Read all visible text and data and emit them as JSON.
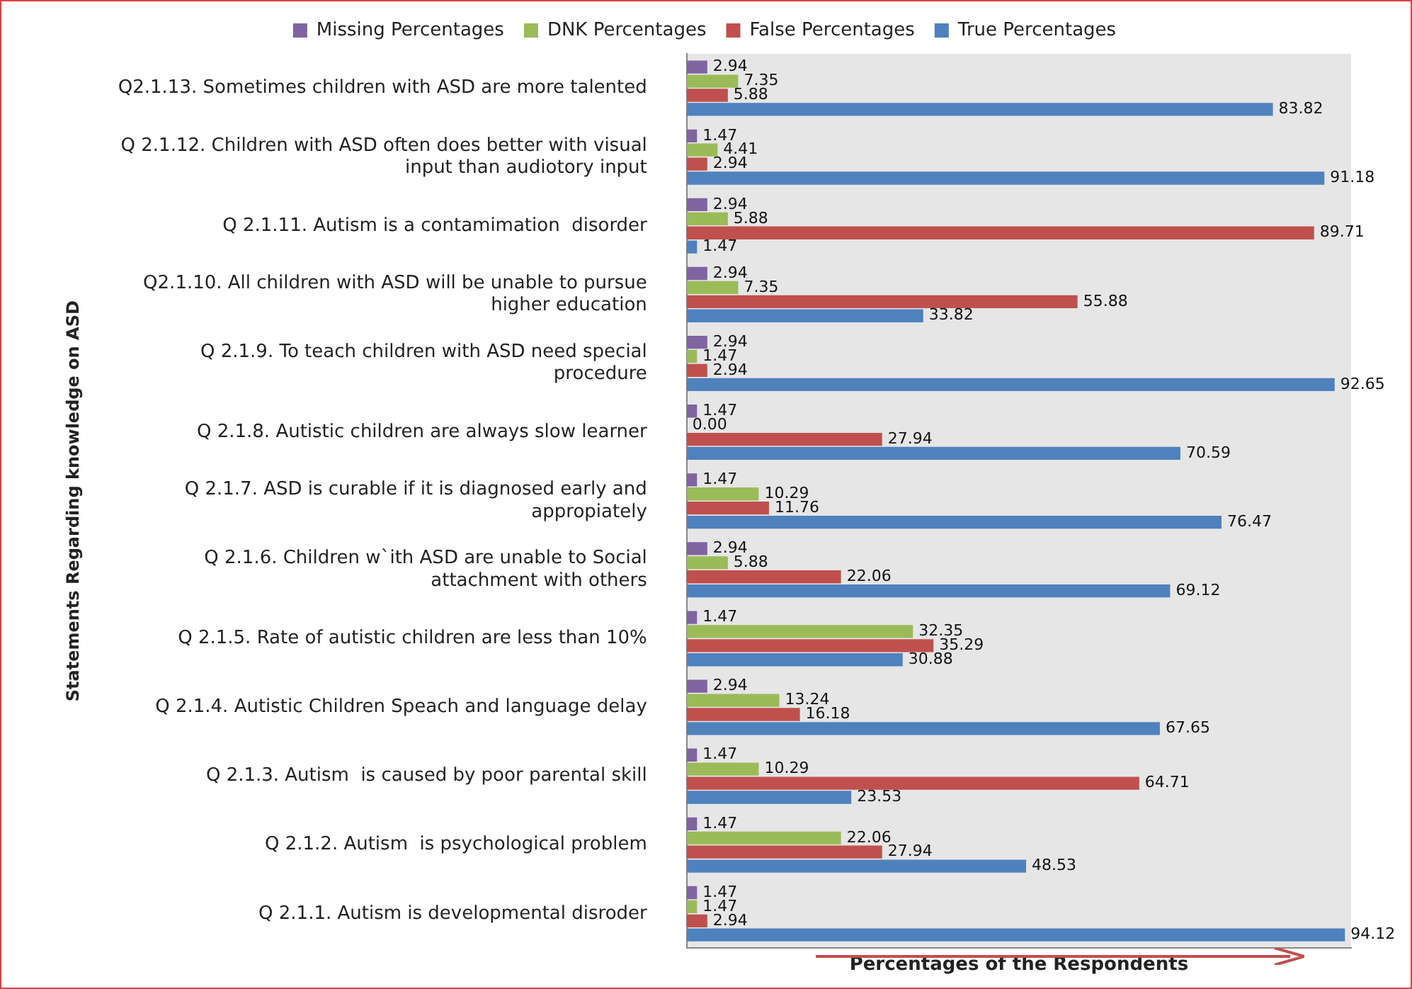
{
  "chart_data": {
    "type": "bar",
    "orientation": "horizontal",
    "xlabel": "Percentages of the Respondents",
    "ylabel": "Statements Regarding knowledge on ASD",
    "categories": [
      "Q2.1.13. Sometimes children with ASD are more talented",
      "Q 2.1.12. Children with ASD often does better with visual input than audiotory input",
      "Q 2.1.11. Autism is a contamimation  disorder",
      "Q2.1.10. All children with ASD will be unable to pursue higher education",
      "Q 2.1.9. To teach children with ASD need special procedure",
      "Q 2.1.8. Autistic children are always slow learner",
      "Q 2.1.7. ASD is curable if it is diagnosed early and appropiately",
      "Q 2.1.6. Children w`ith ASD are unable to Social attachment with others",
      "Q 2.1.5. Rate of autistic children are less than 10%",
      "Q 2.1.4. Autistic Children Speach and language delay",
      "Q 2.1.3. Autism  is caused by poor parental skill",
      "Q 2.1.2. Autism  is psychological problem",
      "Q 2.1.1. Autism is developmental disroder"
    ],
    "series": [
      {
        "name": "Missing Percentages",
        "color": "#8064a2",
        "values": [
          2.94,
          1.47,
          2.94,
          2.94,
          2.94,
          1.47,
          1.47,
          2.94,
          1.47,
          2.94,
          1.47,
          1.47,
          1.47
        ],
        "value_labels": [
          "2.94",
          "1.47",
          "2.94",
          "2.94",
          "2.94",
          "1.47",
          "1.47",
          "2.94",
          "1.47",
          "2.94",
          "1.47",
          "1.47",
          "1.47"
        ]
      },
      {
        "name": "DNK Percentages",
        "color": "#9bbb59",
        "values": [
          7.35,
          4.41,
          5.88,
          7.35,
          1.47,
          0,
          10.29,
          5.88,
          32.35,
          13.24,
          10.29,
          22.06,
          1.47
        ],
        "value_labels": [
          "7.35",
          "4.41",
          "5.88",
          "7.35",
          "1.47",
          "0.00",
          "10.29",
          "5.88",
          "32.35",
          "13.24",
          "10.29",
          "22.06",
          "1.47"
        ]
      },
      {
        "name": "False Percentages",
        "color": "#c0504d",
        "values": [
          5.88,
          2.94,
          89.71,
          55.88,
          2.94,
          27.94,
          11.76,
          22.06,
          35.29,
          16.18,
          64.71,
          27.94,
          2.94
        ],
        "value_labels": [
          "5.88",
          "2.94",
          "89.71",
          "55.88",
          "2.94",
          "27.94",
          "11.76",
          "22.06",
          "35.29",
          "16.18",
          "64.71",
          "27.94",
          "2.94"
        ]
      },
      {
        "name": "True Percentages",
        "color": "#4f81bd",
        "values": [
          83.82,
          91.18,
          1.47,
          33.82,
          92.65,
          70.59,
          76.47,
          69.12,
          30.88,
          67.65,
          23.53,
          48.53,
          94.12
        ],
        "value_labels": [
          "83.82",
          "91.18",
          "1.47",
          "33.82",
          "92.65",
          "70.59",
          "76.47",
          "69.12",
          "30.88",
          "67.65",
          "23.53",
          "48.53",
          "94.12"
        ]
      }
    ],
    "xlim": [
      0,
      95
    ],
    "tick_labels": "y",
    "grid": false,
    "legend": "top"
  }
}
